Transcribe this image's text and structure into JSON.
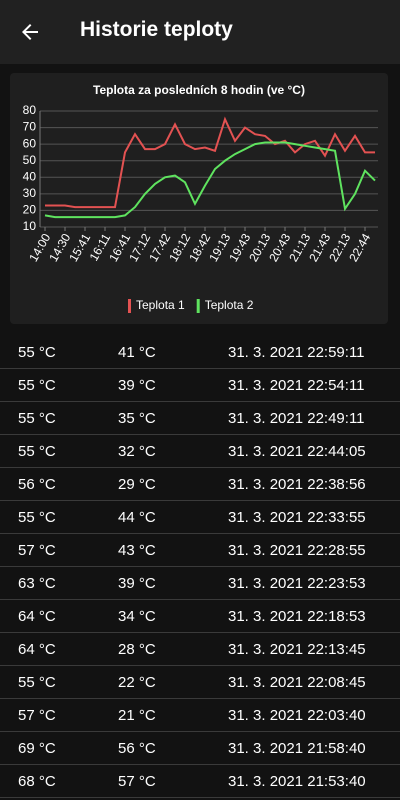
{
  "header": {
    "title": "Historie teploty"
  },
  "chart_data": {
    "type": "line",
    "title": "Teplota za posledních 8 hodin (ve °C)",
    "categories": [
      "14:00",
      null,
      "14:30",
      null,
      "15:41",
      null,
      "16:11",
      null,
      "16:41",
      null,
      "17:12",
      null,
      "17:42",
      null,
      "18:12",
      null,
      "18:42",
      null,
      "19:13",
      null,
      "19:43",
      null,
      "20:13",
      null,
      "20:43",
      null,
      "21:13",
      null,
      "21:43",
      null,
      "22:13",
      null,
      "22:44",
      null
    ],
    "series": [
      {
        "name": "Teplota 1",
        "color": "#e35252",
        "values": [
          23,
          23,
          23,
          22,
          22,
          22,
          22,
          22,
          55,
          66,
          57,
          57,
          60,
          72,
          60,
          57,
          58,
          56,
          75,
          62,
          70,
          66,
          65,
          60,
          62,
          55,
          60,
          62,
          53,
          66,
          56,
          65,
          55,
          55
        ]
      },
      {
        "name": "Teplota 2",
        "color": "#5fe35f",
        "values": [
          17,
          16,
          16,
          16,
          16,
          16,
          16,
          16,
          17,
          22,
          30,
          36,
          40,
          41,
          37,
          24,
          35,
          45,
          50,
          54,
          57,
          60,
          61,
          61,
          61,
          60,
          59,
          58,
          57,
          56,
          21,
          30,
          44,
          38
        ]
      }
    ],
    "ylim": [
      10,
      80
    ],
    "yticks": [
      10,
      20,
      30,
      40,
      50,
      60,
      70,
      80
    ],
    "grid": true,
    "legend": "bottom"
  },
  "table": {
    "rows": [
      [
        "55 °C",
        "41 °C",
        "31. 3. 2021 22:59:11"
      ],
      [
        "55 °C",
        "39 °C",
        "31. 3. 2021 22:54:11"
      ],
      [
        "55 °C",
        "35 °C",
        "31. 3. 2021 22:49:11"
      ],
      [
        "55 °C",
        "32 °C",
        "31. 3. 2021 22:44:05"
      ],
      [
        "56 °C",
        "29 °C",
        "31. 3. 2021 22:38:56"
      ],
      [
        "55 °C",
        "44 °C",
        "31. 3. 2021 22:33:55"
      ],
      [
        "57 °C",
        "43 °C",
        "31. 3. 2021 22:28:55"
      ],
      [
        "63 °C",
        "39 °C",
        "31. 3. 2021 22:23:53"
      ],
      [
        "64 °C",
        "34 °C",
        "31. 3. 2021 22:18:53"
      ],
      [
        "64 °C",
        "28 °C",
        "31. 3. 2021 22:13:45"
      ],
      [
        "55 °C",
        "22 °C",
        "31. 3. 2021 22:08:45"
      ],
      [
        "57 °C",
        "21 °C",
        "31. 3. 2021 22:03:40"
      ],
      [
        "69 °C",
        "56 °C",
        "31. 3. 2021 21:58:40"
      ],
      [
        "68 °C",
        "57 °C",
        "31. 3. 2021 21:53:40"
      ]
    ]
  }
}
